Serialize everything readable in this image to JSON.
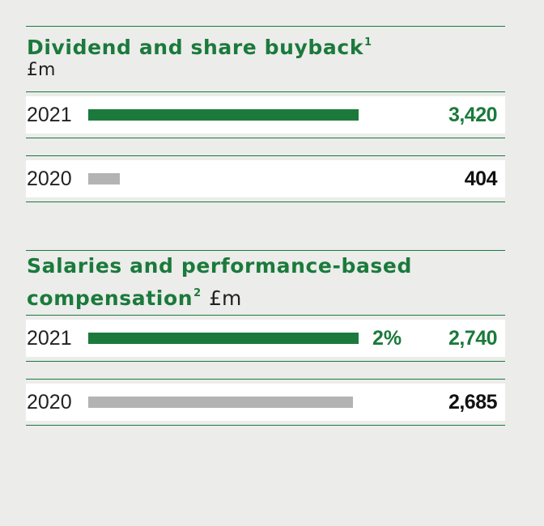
{
  "colors": {
    "accent": "#1b7a3b",
    "muted": "#b3b3b3",
    "current_value": "#1b7a3b",
    "prior_value": "#111111"
  },
  "chart_data": [
    {
      "type": "bar",
      "title": "Dividend and share buyback",
      "title_footnote": "1",
      "unit": "£m",
      "categories": [
        "2021",
        "2020"
      ],
      "values": [
        3420,
        404
      ],
      "value_labels": [
        "3,420",
        "404"
      ],
      "xlim": [
        0,
        3420
      ]
    },
    {
      "type": "bar",
      "title": "Salaries and performance-based compensation",
      "title_footnote": "2",
      "unit": "£m",
      "categories": [
        "2021",
        "2020"
      ],
      "values": [
        2740,
        2685
      ],
      "value_labels": [
        "2,740",
        "2,685"
      ],
      "change_label": "2%",
      "xlim": [
        0,
        2740
      ]
    }
  ]
}
